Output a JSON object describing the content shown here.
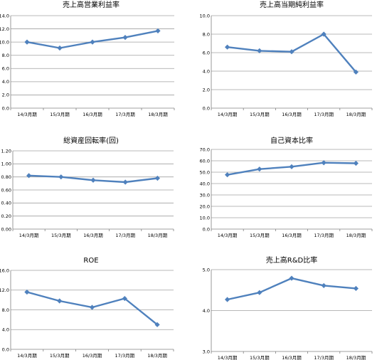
{
  "chart_data": [
    {
      "type": "line",
      "title": "売上高営業利益率",
      "categories": [
        "14/3月期",
        "15/3月期",
        "16/3月期",
        "17/3月期",
        "18/3月期"
      ],
      "values": [
        10.0,
        9.1,
        10.0,
        10.7,
        11.7
      ],
      "ylim": [
        0,
        14
      ],
      "yticks": [
        "0.0",
        "2.0",
        "4.0",
        "6.0",
        "8.0",
        "10.0",
        "12.0",
        "14.0"
      ],
      "grid": true,
      "color": "#4f81bd"
    },
    {
      "type": "line",
      "title": "売上高当期純利益率",
      "categories": [
        "14/3月期",
        "15/3月期",
        "16/3月期",
        "17/3月期",
        "18/3月期"
      ],
      "values": [
        6.6,
        6.2,
        6.1,
        8.0,
        3.9
      ],
      "ylim": [
        0,
        10
      ],
      "yticks": [
        "0.0",
        "2.0",
        "4.0",
        "6.0",
        "8.0",
        "10.0"
      ],
      "grid": true,
      "color": "#4f81bd"
    },
    {
      "type": "line",
      "title": "総資産回転率(回)",
      "categories": [
        "14/3月期",
        "15/3月期",
        "16/3月期",
        "17/3月期",
        "18/3月期"
      ],
      "values": [
        0.82,
        0.8,
        0.75,
        0.72,
        0.78
      ],
      "ylim": [
        0,
        1.2
      ],
      "yticks": [
        "0.00",
        "0.20",
        "0.40",
        "0.60",
        "0.80",
        "1.00",
        "1.20"
      ],
      "grid": true,
      "color": "#4f81bd"
    },
    {
      "type": "line",
      "title": "自己資本比率",
      "categories": [
        "14/3月期",
        "15/3月期",
        "16/3月期",
        "17/3月期",
        "18/3月期"
      ],
      "values": [
        47.7,
        52.7,
        54.8,
        58.3,
        57.8
      ],
      "ylim": [
        0,
        70
      ],
      "yticks": [
        "0.0",
        "10.0",
        "20.0",
        "30.0",
        "40.0",
        "50.0",
        "60.0",
        "70.0"
      ],
      "grid": true,
      "color": "#4f81bd"
    },
    {
      "type": "line",
      "title": "ROE",
      "categories": [
        "14/3月期",
        "15/3月期",
        "16/3月期",
        "17/3月期",
        "18/3月期"
      ],
      "values": [
        11.6,
        9.8,
        8.5,
        10.3,
        5.0
      ],
      "ylim": [
        0,
        16
      ],
      "yticks": [
        "0.0",
        "4.0",
        "8.0",
        "12.0",
        "16.0"
      ],
      "grid": true,
      "color": "#4f81bd"
    },
    {
      "type": "line",
      "title": "売上高R&D比率",
      "categories": [
        "14/3月期",
        "15/3月期",
        "16/3月期",
        "17/3月期",
        "18/3月期"
      ],
      "values": [
        4.27,
        4.44,
        4.79,
        4.61,
        4.54
      ],
      "ylim": [
        3,
        5
      ],
      "yticks": [
        "3.0",
        "4.0",
        "5.0"
      ],
      "grid": true,
      "color": "#4f81bd"
    }
  ]
}
